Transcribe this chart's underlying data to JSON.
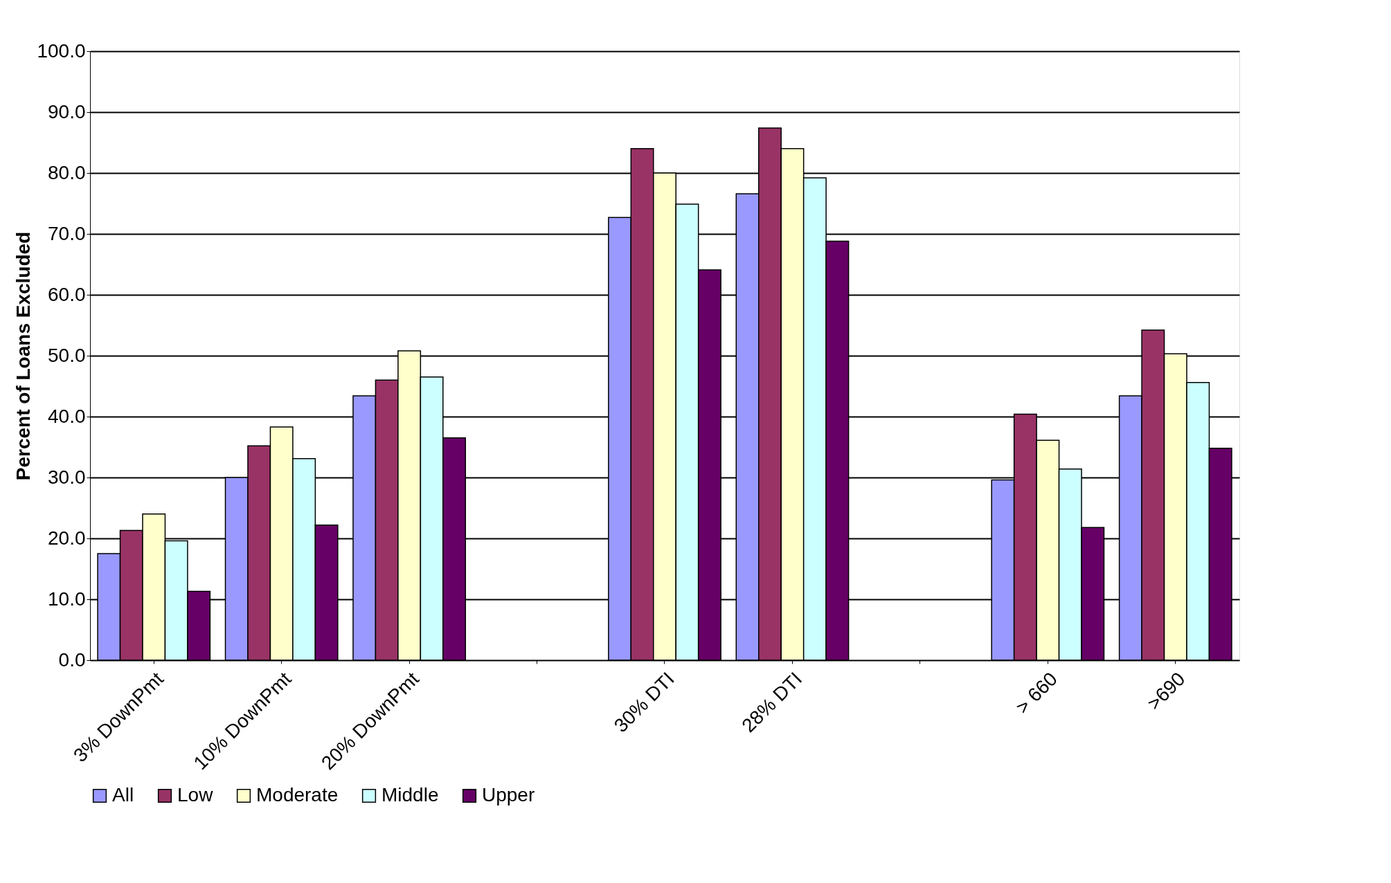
{
  "chart_data": {
    "type": "bar",
    "ylabel": "Percent of Loans Excluded",
    "categories": [
      "3%  DownPmt",
      "10% DownPmt",
      "20% DownPmt",
      null,
      "30% DTI",
      "28% DTI",
      null,
      "> 660",
      ">690"
    ],
    "series": [
      {
        "name": "All",
        "color": "#9999ff",
        "values": [
          17.5,
          30.0,
          43.4,
          null,
          72.7,
          76.6,
          null,
          29.6,
          43.4
        ]
      },
      {
        "name": "Low",
        "color": "#993366",
        "values": [
          21.3,
          35.2,
          46.0,
          null,
          84.0,
          87.4,
          null,
          40.4,
          54.2
        ]
      },
      {
        "name": "Moderate",
        "color": "#ffffcc",
        "values": [
          24.0,
          38.3,
          50.8,
          null,
          80.0,
          84.0,
          null,
          36.1,
          50.3
        ]
      },
      {
        "name": "Middle",
        "color": "#ccffff",
        "values": [
          19.6,
          33.1,
          46.5,
          null,
          74.9,
          79.2,
          null,
          31.4,
          45.6
        ]
      },
      {
        "name": "Upper",
        "color": "#660066",
        "values": [
          11.3,
          22.2,
          36.5,
          null,
          64.1,
          68.8,
          null,
          21.8,
          34.8
        ]
      }
    ],
    "ylim": [
      0,
      100
    ],
    "yticks": [
      {
        "value": 0,
        "label": "0.0"
      },
      {
        "value": 10,
        "label": "10.0"
      },
      {
        "value": 20,
        "label": "20.0"
      },
      {
        "value": 30,
        "label": "30.0"
      },
      {
        "value": 40,
        "label": "40.0"
      },
      {
        "value": 50,
        "label": "50.0"
      },
      {
        "value": 60,
        "label": "60.0"
      },
      {
        "value": 70,
        "label": "70.0"
      },
      {
        "value": 80,
        "label": "80.0"
      },
      {
        "value": 90,
        "label": "90.0"
      },
      {
        "value": 100,
        "label": "100.0"
      }
    ],
    "grid": "y",
    "legend": "bottom"
  }
}
